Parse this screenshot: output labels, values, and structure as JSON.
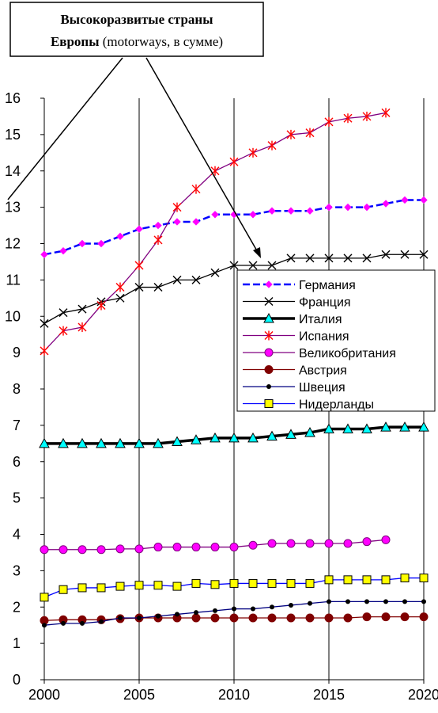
{
  "chart_data": {
    "type": "line",
    "title_line1": "Высокоразвитые страны",
    "title_line2_bold": "Европы",
    "title_line2_rest": " (motorways, в сумме)",
    "xlim": [
      2000,
      2020
    ],
    "ylim": [
      0,
      16
    ],
    "x_ticks": [
      2000,
      2005,
      2010,
      2015,
      2020
    ],
    "y_ticks": [
      0,
      1,
      2,
      3,
      4,
      5,
      6,
      7,
      8,
      9,
      10,
      11,
      12,
      13,
      14,
      15,
      16
    ],
    "grid": "vertical",
    "legend_position": "right",
    "series": [
      {
        "name": "Германия",
        "color": "#0000ff",
        "marker_color": "#ff00ff",
        "marker": "diamond",
        "dash": "dashed",
        "x": [
          2000,
          2001,
          2002,
          2003,
          2004,
          2005,
          2006,
          2007,
          2008,
          2009,
          2010,
          2011,
          2012,
          2013,
          2014,
          2015,
          2016,
          2017,
          2018,
          2019,
          2020
        ],
        "values": [
          11.7,
          11.8,
          12.0,
          12.0,
          12.2,
          12.4,
          12.5,
          12.6,
          12.6,
          12.8,
          12.8,
          12.8,
          12.9,
          12.9,
          12.9,
          13.0,
          13.0,
          13.0,
          13.1,
          13.2,
          13.2
        ]
      },
      {
        "name": "Франция",
        "color": "#000000",
        "marker_color": "#000000",
        "marker": "x",
        "dash": "solid",
        "x": [
          2000,
          2001,
          2002,
          2003,
          2004,
          2005,
          2006,
          2007,
          2008,
          2009,
          2010,
          2011,
          2012,
          2013,
          2014,
          2015,
          2016,
          2017,
          2018,
          2019,
          2020
        ],
        "values": [
          9.8,
          10.1,
          10.2,
          10.4,
          10.5,
          10.8,
          10.8,
          11.0,
          11.0,
          11.2,
          11.4,
          11.4,
          11.4,
          11.6,
          11.6,
          11.6,
          11.6,
          11.6,
          11.7,
          11.7,
          11.7
        ]
      },
      {
        "name": "Италия",
        "color": "#000000",
        "marker_color": "#00ffff",
        "marker": "triangle",
        "dash": "thick",
        "x": [
          2000,
          2001,
          2002,
          2003,
          2004,
          2005,
          2006,
          2007,
          2008,
          2009,
          2010,
          2011,
          2012,
          2013,
          2014,
          2015,
          2016,
          2017,
          2018,
          2019,
          2020
        ],
        "values": [
          6.5,
          6.5,
          6.5,
          6.5,
          6.5,
          6.5,
          6.5,
          6.55,
          6.6,
          6.65,
          6.65,
          6.65,
          6.7,
          6.75,
          6.8,
          6.9,
          6.9,
          6.9,
          6.95,
          6.95,
          6.95
        ]
      },
      {
        "name": "Испания",
        "color": "#800080",
        "marker_color": "#ff0000",
        "marker": "asterisk",
        "dash": "solid",
        "x": [
          2000,
          2001,
          2002,
          2003,
          2004,
          2005,
          2006,
          2007,
          2008,
          2009,
          2010,
          2011,
          2012,
          2013,
          2014,
          2015,
          2016,
          2017,
          2018
        ],
        "values": [
          9.05,
          9.6,
          9.7,
          10.3,
          10.8,
          11.4,
          12.1,
          13.0,
          13.5,
          14.0,
          14.25,
          14.5,
          14.7,
          15.0,
          15.05,
          15.35,
          15.45,
          15.5,
          15.6
        ]
      },
      {
        "name": "Великобритания",
        "color": "#800080",
        "marker_color": "#ff00ff",
        "marker": "circle",
        "dash": "solid",
        "x": [
          2000,
          2001,
          2002,
          2003,
          2004,
          2005,
          2006,
          2007,
          2008,
          2009,
          2010,
          2011,
          2012,
          2013,
          2014,
          2015,
          2016,
          2017,
          2018
        ],
        "values": [
          3.58,
          3.58,
          3.58,
          3.58,
          3.6,
          3.6,
          3.65,
          3.65,
          3.65,
          3.65,
          3.65,
          3.7,
          3.75,
          3.75,
          3.75,
          3.75,
          3.75,
          3.8,
          3.85
        ]
      },
      {
        "name": "Австрия",
        "color": "#800000",
        "marker_color": "#800000",
        "marker": "circle",
        "dash": "solid",
        "x": [
          2000,
          2001,
          2002,
          2003,
          2004,
          2005,
          2006,
          2007,
          2008,
          2009,
          2010,
          2011,
          2012,
          2013,
          2014,
          2015,
          2016,
          2017,
          2018,
          2019,
          2020
        ],
        "values": [
          1.63,
          1.65,
          1.65,
          1.65,
          1.68,
          1.7,
          1.7,
          1.7,
          1.7,
          1.7,
          1.7,
          1.7,
          1.7,
          1.7,
          1.7,
          1.7,
          1.7,
          1.73,
          1.73,
          1.73,
          1.73
        ]
      },
      {
        "name": "Швеция",
        "color": "#000080",
        "marker_color": "#000000",
        "marker": "smalldot",
        "dash": "solid",
        "x": [
          2000,
          2001,
          2002,
          2003,
          2004,
          2005,
          2006,
          2007,
          2008,
          2009,
          2010,
          2011,
          2012,
          2013,
          2014,
          2015,
          2016,
          2017,
          2018,
          2019,
          2020
        ],
        "values": [
          1.5,
          1.55,
          1.55,
          1.6,
          1.7,
          1.7,
          1.75,
          1.8,
          1.85,
          1.9,
          1.95,
          1.95,
          2.0,
          2.05,
          2.1,
          2.15,
          2.15,
          2.15,
          2.15,
          2.15,
          2.15
        ]
      },
      {
        "name": "Нидерланды",
        "color": "#0000ff",
        "marker_color": "#ffff00",
        "marker": "square",
        "dash": "solid",
        "x": [
          2000,
          2001,
          2002,
          2003,
          2004,
          2005,
          2006,
          2007,
          2008,
          2009,
          2010,
          2011,
          2012,
          2013,
          2014,
          2015,
          2016,
          2017,
          2018,
          2019,
          2020
        ],
        "values": [
          2.27,
          2.48,
          2.53,
          2.53,
          2.57,
          2.6,
          2.6,
          2.57,
          2.65,
          2.62,
          2.65,
          2.65,
          2.65,
          2.65,
          2.65,
          2.75,
          2.75,
          2.75,
          2.75,
          2.8,
          2.8
        ]
      }
    ]
  }
}
